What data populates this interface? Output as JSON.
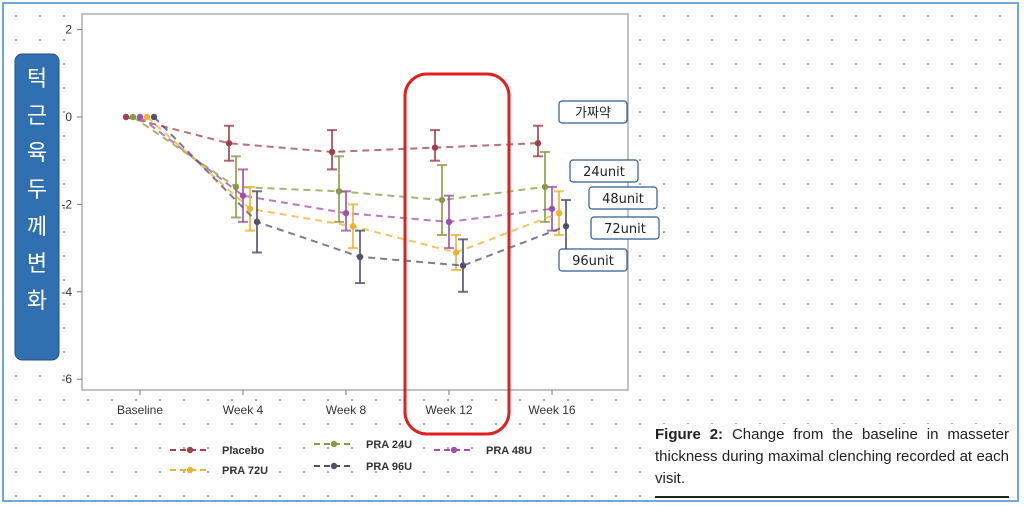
{
  "chart_data": {
    "type": "line",
    "categories": [
      "Baseline",
      "Week 4",
      "Week 8",
      "Week 12",
      "Week 16"
    ],
    "ylim": [
      -6,
      2
    ],
    "yticks": [
      "2",
      "0",
      "-2",
      "-4",
      "-6"
    ],
    "ylabel": "턱근육두께변화",
    "series": [
      {
        "name": "Placebo",
        "color": "#a0404c",
        "values": [
          0,
          -0.6,
          -0.8,
          -0.7,
          -0.6
        ],
        "lower": [
          0,
          -1.0,
          -1.2,
          -1.0,
          -0.9
        ],
        "upper": [
          0,
          -0.2,
          -0.3,
          -0.3,
          -0.2
        ],
        "callout": "가짜약"
      },
      {
        "name": "PRA 24U",
        "color": "#8a9a40",
        "values": [
          0,
          -1.6,
          -1.7,
          -1.9,
          -1.6
        ],
        "lower": [
          0,
          -2.3,
          -2.4,
          -2.7,
          -2.4
        ],
        "upper": [
          0,
          -0.9,
          -0.9,
          -1.1,
          -0.8
        ],
        "callout": "24unit"
      },
      {
        "name": "PRA 48U",
        "color": "#a050a8",
        "values": [
          0,
          -1.8,
          -2.2,
          -2.4,
          -2.1
        ],
        "lower": [
          0,
          -2.4,
          -2.6,
          -3.0,
          -2.6
        ],
        "upper": [
          0,
          -1.2,
          -1.7,
          -1.8,
          -1.6
        ],
        "callout": "48unit"
      },
      {
        "name": "PRA 72U",
        "color": "#f0b030",
        "values": [
          0,
          -2.1,
          -2.5,
          -3.1,
          -2.2
        ],
        "lower": [
          0,
          -2.6,
          -3.0,
          -3.5,
          -2.7
        ],
        "upper": [
          0,
          -1.6,
          -2.0,
          -2.7,
          -1.7
        ],
        "callout": "72unit"
      },
      {
        "name": "PRA 96U",
        "color": "#505068",
        "values": [
          0,
          -2.4,
          -3.2,
          -3.4,
          -2.5
        ],
        "lower": [
          0,
          -3.1,
          -3.8,
          -4.0,
          -3.1
        ],
        "upper": [
          0,
          -1.7,
          -2.6,
          -2.8,
          -1.9
        ],
        "callout": "96unit"
      }
    ]
  },
  "caption": {
    "label": "Figure 2:",
    "text": " Change from the baseline in masseter thickness during maximal clenching recorded at each visit."
  },
  "highlight": {
    "color": "#e02020",
    "category": "Week 12"
  }
}
